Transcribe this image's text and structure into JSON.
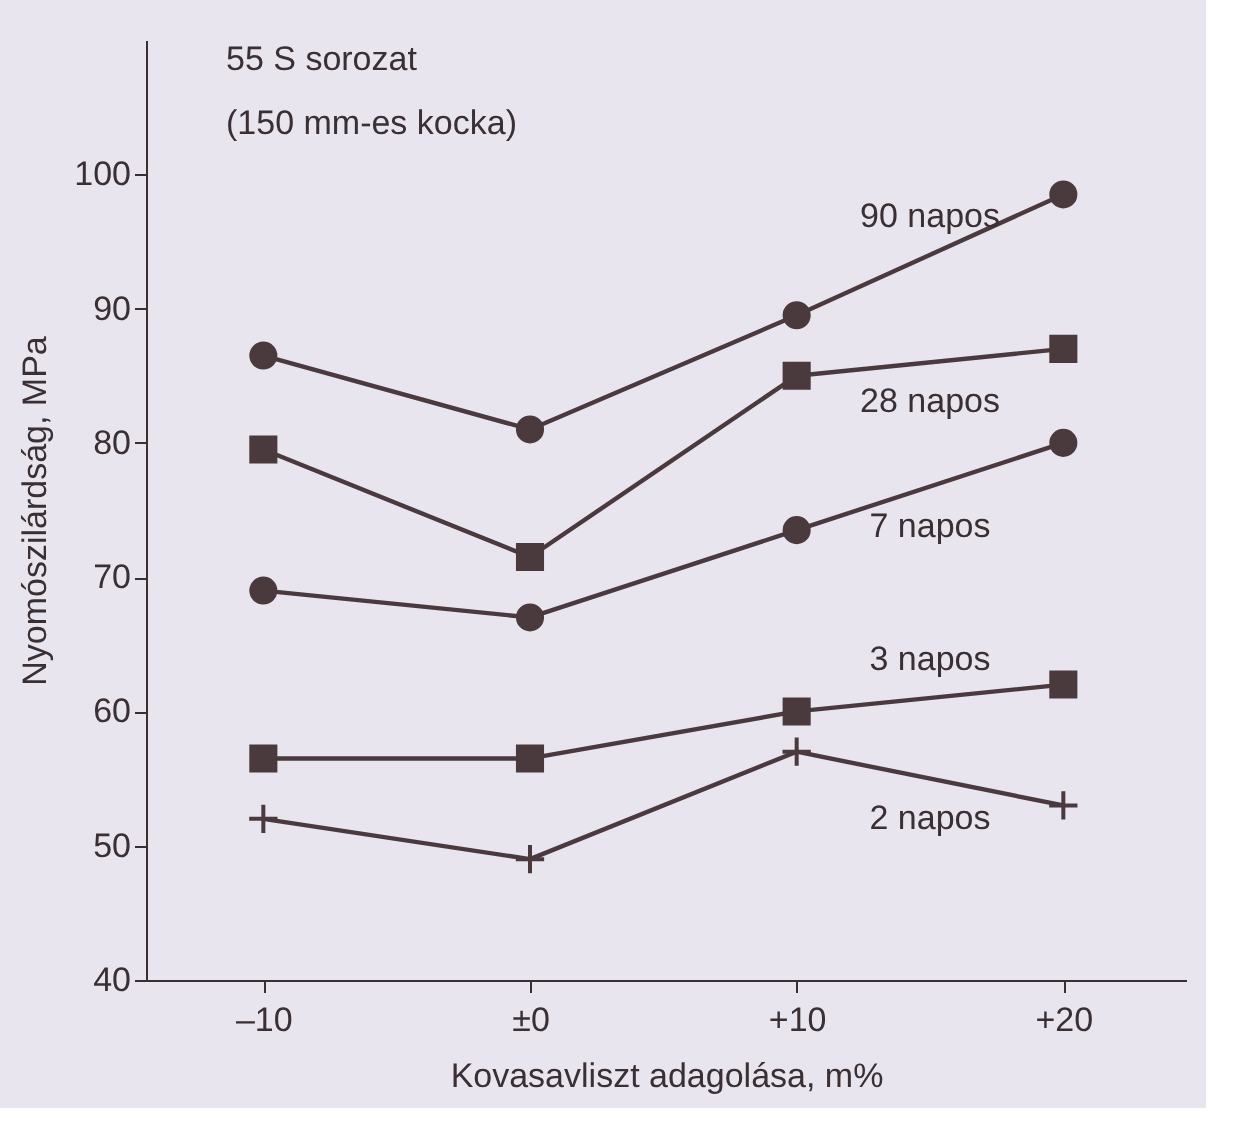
{
  "chart_data": {
    "type": "line",
    "title": "55 S sorozat",
    "subtitle": "(150 mm-es kocka)",
    "xlabel": "Kovasavliszt adagolása, m%",
    "ylabel": "Nyomószilárdság, MPa",
    "x": [
      -10,
      0,
      10,
      20
    ],
    "xlim": [
      -14.4,
      24.6
    ],
    "ylim": [
      40,
      110
    ],
    "xticks": [
      {
        "value": -10,
        "label": "–10"
      },
      {
        "value": 0,
        "label": "±0"
      },
      {
        "value": 10,
        "label": "+10"
      },
      {
        "value": 20,
        "label": "+20"
      }
    ],
    "yticks": [
      40,
      50,
      60,
      70,
      80,
      90,
      100
    ],
    "grid": false,
    "line_style": "solid",
    "series": [
      {
        "name": "90 napos",
        "color": "#4a3a3e",
        "marker": "circle",
        "values": [
          86.5,
          81,
          89.5,
          98.5
        ]
      },
      {
        "name": "28 napos",
        "color": "#4a3a3e",
        "marker": "square",
        "values": [
          79.5,
          71.5,
          85,
          87
        ]
      },
      {
        "name": "7 napos",
        "color": "#4a3a3e",
        "marker": "circle",
        "values": [
          69,
          67,
          73.5,
          80
        ]
      },
      {
        "name": "3 napos",
        "color": "#4a3a3e",
        "marker": "square",
        "values": [
          56.5,
          56.5,
          60,
          62
        ]
      },
      {
        "name": "2 napos",
        "color": "#4a3a3e",
        "marker": "cross",
        "values": [
          52,
          49,
          57,
          53
        ]
      }
    ]
  }
}
